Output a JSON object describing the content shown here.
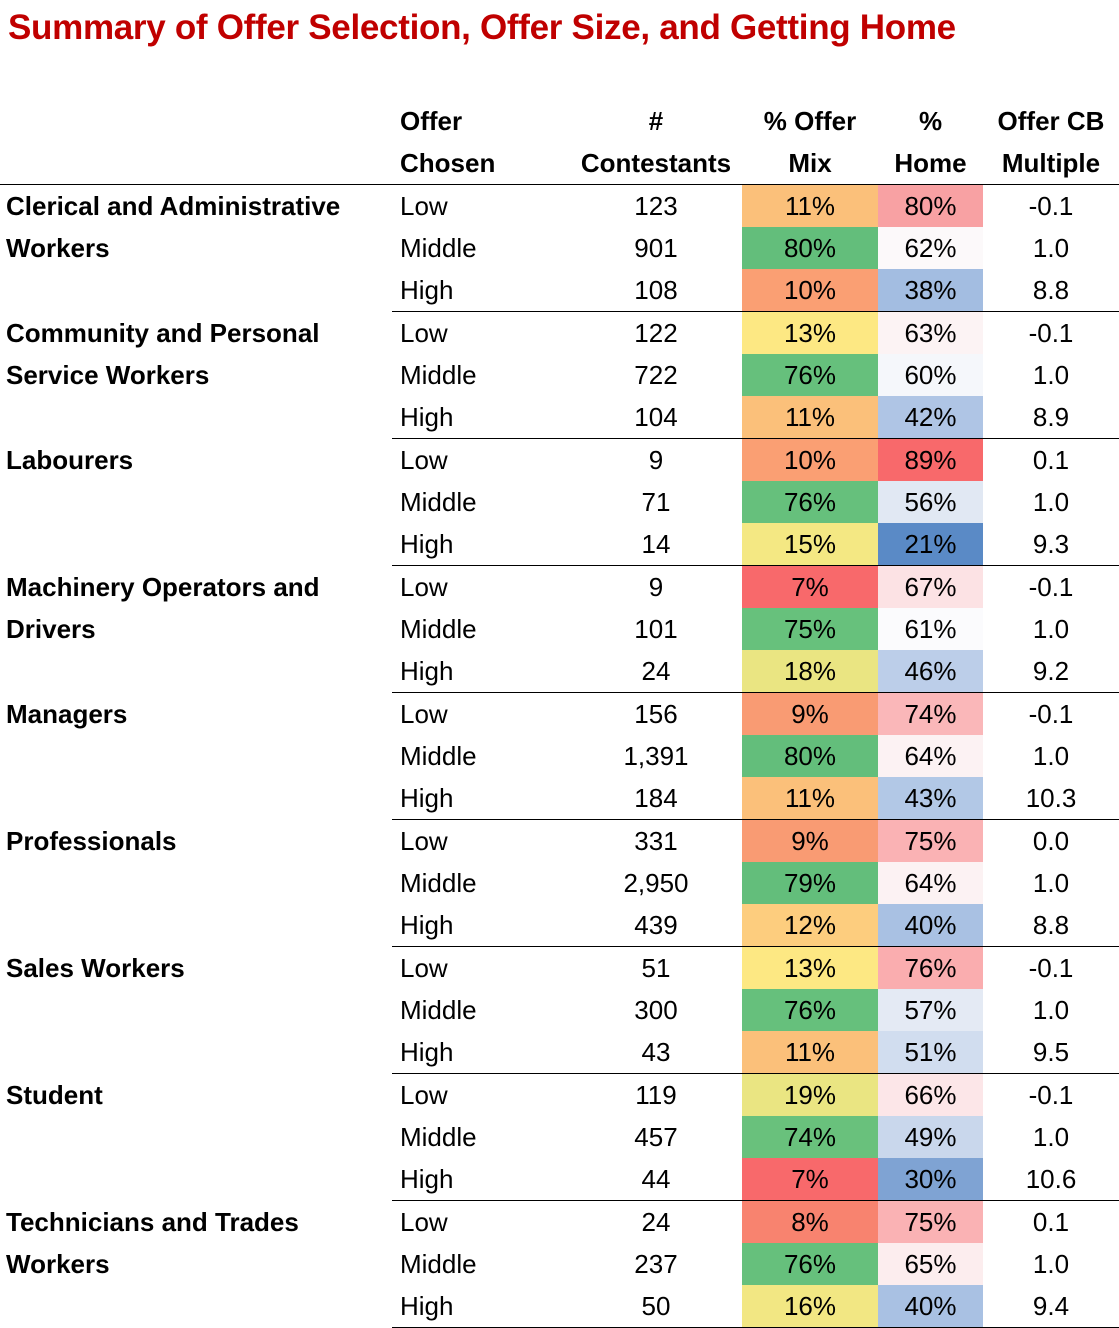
{
  "title": "Summary of Offer Selection, Offer Size, and Getting Home",
  "headers": {
    "offer_line1": "Offer",
    "offer_line2": "Chosen",
    "contestants_line1": "#",
    "contestants_line2": "Contestants",
    "mix_line1": "% Offer",
    "mix_line2": "Mix",
    "home_line1": "%",
    "home_line2": "Home",
    "mult_line1": "Offer CB",
    "mult_line2": "Multiple"
  },
  "groups": [
    {
      "occupation": "Clerical and Administrative Workers",
      "rows": [
        {
          "offer": "Low",
          "contestants": "123",
          "mix": "11%",
          "home": "80%",
          "multiple": "-0.1",
          "mix_color": "#fbc07a",
          "home_color": "#f8a1a3"
        },
        {
          "offer": "Middle",
          "contestants": "901",
          "mix": "80%",
          "home": "62%",
          "multiple": "1.0",
          "mix_color": "#63be7b",
          "home_color": "#fcf9fa"
        },
        {
          "offer": "High",
          "contestants": "108",
          "mix": "10%",
          "home": "38%",
          "multiple": "8.8",
          "mix_color": "#fa9f73",
          "home_color": "#a3bde1"
        }
      ]
    },
    {
      "occupation": "Community and Personal Service Workers",
      "rows": [
        {
          "offer": "Low",
          "contestants": "122",
          "mix": "13%",
          "home": "63%",
          "multiple": "-0.1",
          "mix_color": "#fde883",
          "home_color": "#fcf3f4"
        },
        {
          "offer": "Middle",
          "contestants": "722",
          "mix": "76%",
          "home": "60%",
          "multiple": "1.0",
          "mix_color": "#66c07c",
          "home_color": "#f5f7fb"
        },
        {
          "offer": "High",
          "contestants": "104",
          "mix": "11%",
          "home": "42%",
          "multiple": "8.9",
          "mix_color": "#fbc07a",
          "home_color": "#afc5e5"
        }
      ]
    },
    {
      "occupation": "Labourers",
      "rows": [
        {
          "offer": "Low",
          "contestants": "9",
          "mix": "10%",
          "home": "89%",
          "multiple": "0.1",
          "mix_color": "#fa9f73",
          "home_color": "#f8696b"
        },
        {
          "offer": "Middle",
          "contestants": "71",
          "mix": "76%",
          "home": "56%",
          "multiple": "1.0",
          "mix_color": "#66c07c",
          "home_color": "#e1e8f3"
        },
        {
          "offer": "High",
          "contestants": "14",
          "mix": "15%",
          "home": "21%",
          "multiple": "9.3",
          "mix_color": "#f4e883",
          "home_color": "#5a8ac6"
        }
      ]
    },
    {
      "occupation": "Machinery Operators and Drivers",
      "rows": [
        {
          "offer": "Low",
          "contestants": "9",
          "mix": "7%",
          "home": "67%",
          "multiple": "-0.1",
          "mix_color": "#f8696b",
          "home_color": "#fce2e4"
        },
        {
          "offer": "Middle",
          "contestants": "101",
          "mix": "75%",
          "home": "61%",
          "multiple": "1.0",
          "mix_color": "#67c17c",
          "home_color": "#fbfbfd"
        },
        {
          "offer": "High",
          "contestants": "24",
          "mix": "18%",
          "home": "46%",
          "multiple": "9.2",
          "mix_color": "#eae582",
          "home_color": "#bccee9"
        }
      ]
    },
    {
      "occupation": "Managers",
      "rows": [
        {
          "offer": "Low",
          "contestants": "156",
          "mix": "9%",
          "home": "74%",
          "multiple": "-0.1",
          "mix_color": "#f99b73",
          "home_color": "#fab7b9"
        },
        {
          "offer": "Middle",
          "contestants": "1,391",
          "mix": "80%",
          "home": "64%",
          "multiple": "1.0",
          "mix_color": "#63be7b",
          "home_color": "#fcf2f3"
        },
        {
          "offer": "High",
          "contestants": "184",
          "mix": "11%",
          "home": "43%",
          "multiple": "10.3",
          "mix_color": "#fbc07a",
          "home_color": "#b2c8e6"
        }
      ]
    },
    {
      "occupation": "Professionals",
      "rows": [
        {
          "offer": "Low",
          "contestants": "331",
          "mix": "9%",
          "home": "75%",
          "multiple": "0.0",
          "mix_color": "#f99b73",
          "home_color": "#fab2b4"
        },
        {
          "offer": "Middle",
          "contestants": "2,950",
          "mix": "79%",
          "home": "64%",
          "multiple": "1.0",
          "mix_color": "#63be7b",
          "home_color": "#fcf2f3"
        },
        {
          "offer": "High",
          "contestants": "439",
          "mix": "12%",
          "home": "40%",
          "multiple": "8.8",
          "mix_color": "#fdcd7e",
          "home_color": "#a9c1e3"
        }
      ]
    },
    {
      "occupation": "Sales Workers",
      "rows": [
        {
          "offer": "Low",
          "contestants": "51",
          "mix": "13%",
          "home": "76%",
          "multiple": "-0.1",
          "mix_color": "#fde883",
          "home_color": "#faadaf"
        },
        {
          "offer": "Middle",
          "contestants": "300",
          "mix": "76%",
          "home": "57%",
          "multiple": "1.0",
          "mix_color": "#66c07c",
          "home_color": "#e4eaf4"
        },
        {
          "offer": "High",
          "contestants": "43",
          "mix": "11%",
          "home": "51%",
          "multiple": "9.5",
          "mix_color": "#fbc07a",
          "home_color": "#d1ddef"
        }
      ]
    },
    {
      "occupation": "Student",
      "rows": [
        {
          "offer": "Low",
          "contestants": "119",
          "mix": "19%",
          "home": "66%",
          "multiple": "-0.1",
          "mix_color": "#eae582",
          "home_color": "#fce6e8"
        },
        {
          "offer": "Middle",
          "contestants": "457",
          "mix": "74%",
          "home": "49%",
          "multiple": "1.0",
          "mix_color": "#69c17c",
          "home_color": "#c9d7ec"
        },
        {
          "offer": "High",
          "contestants": "44",
          "mix": "7%",
          "home": "30%",
          "multiple": "10.6",
          "mix_color": "#f8696b",
          "home_color": "#7fa3d3"
        }
      ]
    },
    {
      "occupation": "Technicians and Trades Workers",
      "rows": [
        {
          "offer": "Low",
          "contestants": "24",
          "mix": "8%",
          "home": "75%",
          "multiple": "0.1",
          "mix_color": "#f8836f",
          "home_color": "#fab2b4"
        },
        {
          "offer": "Middle",
          "contestants": "237",
          "mix": "76%",
          "home": "65%",
          "multiple": "1.0",
          "mix_color": "#66c07c",
          "home_color": "#fcedee"
        },
        {
          "offer": "High",
          "contestants": "50",
          "mix": "16%",
          "home": "40%",
          "multiple": "9.4",
          "mix_color": "#f2e783",
          "home_color": "#a9c1e3"
        }
      ]
    }
  ]
}
